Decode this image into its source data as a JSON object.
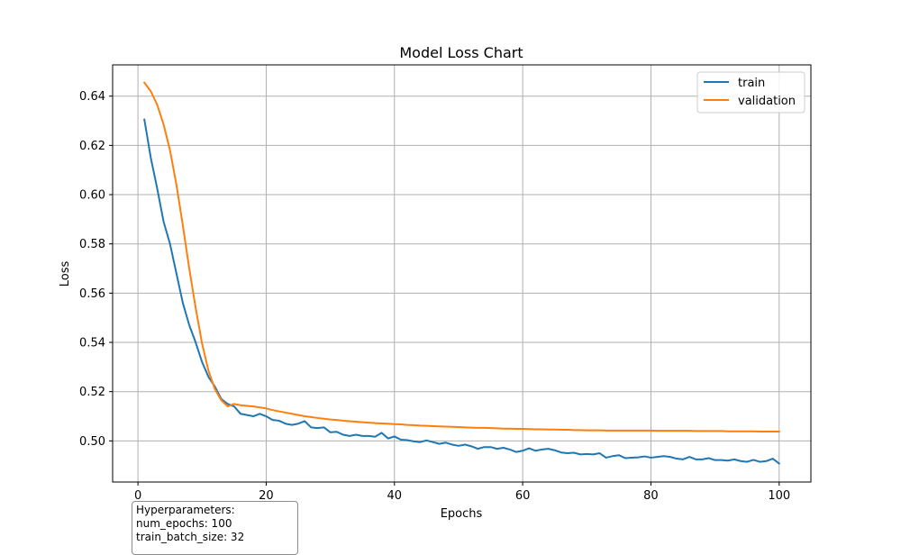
{
  "chart_data": {
    "type": "line",
    "title": "Model Loss Chart",
    "xlabel": "Epochs",
    "ylabel": "Loss",
    "xlim": [
      -3.95,
      104.95
    ],
    "ylim": [
      0.4833,
      0.6527
    ],
    "x_ticks": [
      0,
      20,
      40,
      60,
      80,
      100
    ],
    "y_ticks": [
      0.5,
      0.52,
      0.54,
      0.56,
      0.58,
      0.6,
      0.62,
      0.64
    ],
    "x_tick_labels": [
      "0",
      "20",
      "40",
      "60",
      "80",
      "100"
    ],
    "y_tick_labels": [
      "0.50",
      "0.52",
      "0.54",
      "0.56",
      "0.58",
      "0.60",
      "0.62",
      "0.64"
    ],
    "grid": true,
    "legend_position": "top-right",
    "series": [
      {
        "name": "train",
        "color": "#1f77b4",
        "x": [
          1,
          2,
          3,
          4,
          5,
          6,
          7,
          8,
          9,
          10,
          11,
          12,
          13,
          14,
          15,
          16,
          17,
          18,
          19,
          20,
          21,
          22,
          23,
          24,
          25,
          26,
          27,
          28,
          29,
          30,
          31,
          32,
          33,
          34,
          35,
          36,
          37,
          38,
          39,
          40,
          41,
          42,
          43,
          44,
          45,
          46,
          47,
          48,
          49,
          50,
          51,
          52,
          53,
          54,
          55,
          56,
          57,
          58,
          59,
          60,
          61,
          62,
          63,
          64,
          65,
          66,
          67,
          68,
          69,
          70,
          71,
          72,
          73,
          74,
          75,
          76,
          77,
          78,
          79,
          80,
          81,
          82,
          83,
          84,
          85,
          86,
          87,
          88,
          89,
          90,
          91,
          92,
          93,
          94,
          95,
          96,
          97,
          98,
          99,
          100
        ],
        "values": [
          0.6305,
          0.615,
          0.6025,
          0.589,
          0.58,
          0.568,
          0.556,
          0.547,
          0.54,
          0.532,
          0.526,
          0.522,
          0.517,
          0.515,
          0.514,
          0.511,
          0.5105,
          0.51,
          0.511,
          0.51,
          0.5085,
          0.5082,
          0.507,
          0.5065,
          0.507,
          0.508,
          0.5055,
          0.5052,
          0.5055,
          0.5035,
          0.5037,
          0.5025,
          0.502,
          0.5025,
          0.502,
          0.502,
          0.5017,
          0.5033,
          0.501,
          0.5018,
          0.5005,
          0.5003,
          0.4998,
          0.4995,
          0.5002,
          0.4995,
          0.4988,
          0.4993,
          0.4985,
          0.498,
          0.4985,
          0.4978,
          0.4968,
          0.4975,
          0.4975,
          0.4968,
          0.4972,
          0.4965,
          0.4955,
          0.496,
          0.497,
          0.496,
          0.4965,
          0.4968,
          0.4962,
          0.4953,
          0.495,
          0.4952,
          0.4945,
          0.4947,
          0.4945,
          0.495,
          0.4932,
          0.4938,
          0.4942,
          0.493,
          0.4932,
          0.4933,
          0.4937,
          0.4932,
          0.4935,
          0.4938,
          0.4935,
          0.4928,
          0.4925,
          0.4935,
          0.4925,
          0.4925,
          0.493,
          0.4922,
          0.4922,
          0.492,
          0.4925,
          0.4918,
          0.4915,
          0.4923,
          0.4915,
          0.4918,
          0.4928,
          0.4908
        ]
      },
      {
        "name": "validation",
        "color": "#ff7f0e",
        "x": [
          1,
          2,
          3,
          4,
          5,
          6,
          7,
          8,
          9,
          10,
          11,
          12,
          13,
          14,
          15,
          16,
          17,
          18,
          19,
          20,
          21,
          22,
          23,
          24,
          25,
          26,
          27,
          28,
          29,
          30,
          31,
          32,
          33,
          34,
          35,
          36,
          37,
          38,
          39,
          40,
          41,
          42,
          43,
          44,
          45,
          46,
          47,
          48,
          49,
          50,
          51,
          52,
          53,
          54,
          55,
          56,
          57,
          58,
          59,
          60,
          61,
          62,
          63,
          64,
          65,
          66,
          67,
          68,
          69,
          70,
          71,
          72,
          73,
          74,
          75,
          76,
          77,
          78,
          79,
          80,
          81,
          82,
          83,
          84,
          85,
          86,
          87,
          88,
          89,
          90,
          91,
          92,
          93,
          94,
          95,
          96,
          97,
          98,
          99,
          100
        ],
        "values": [
          0.6455,
          0.642,
          0.6365,
          0.6285,
          0.618,
          0.604,
          0.5875,
          0.57,
          0.554,
          0.5395,
          0.5285,
          0.521,
          0.5165,
          0.514,
          0.515,
          0.5145,
          0.5142,
          0.514,
          0.5136,
          0.5132,
          0.5125,
          0.512,
          0.5115,
          0.511,
          0.5105,
          0.51,
          0.5097,
          0.5093,
          0.509,
          0.5087,
          0.5085,
          0.5082,
          0.508,
          0.5078,
          0.5076,
          0.5074,
          0.5072,
          0.5071,
          0.507,
          0.5068,
          0.5067,
          0.5065,
          0.5064,
          0.5062,
          0.5061,
          0.506,
          0.5059,
          0.5058,
          0.5057,
          0.5056,
          0.5055,
          0.5054,
          0.5053,
          0.5053,
          0.5052,
          0.5051,
          0.505,
          0.505,
          0.5049,
          0.5049,
          0.5048,
          0.5047,
          0.5047,
          0.5046,
          0.5046,
          0.5045,
          0.5045,
          0.5044,
          0.5044,
          0.5043,
          0.5043,
          0.5043,
          0.5042,
          0.5042,
          0.5042,
          0.5042,
          0.5042,
          0.5042,
          0.5042,
          0.5042,
          0.5041,
          0.5041,
          0.5041,
          0.5041,
          0.5041,
          0.5041,
          0.504,
          0.504,
          0.504,
          0.504,
          0.504,
          0.5039,
          0.5039,
          0.5039,
          0.5039,
          0.5039,
          0.5038,
          0.5038,
          0.5038,
          0.5038
        ]
      }
    ]
  },
  "hyperparameters": {
    "lines": [
      "Hyperparameters:",
      "num_epochs: 100",
      "train_batch_size: 32"
    ]
  }
}
